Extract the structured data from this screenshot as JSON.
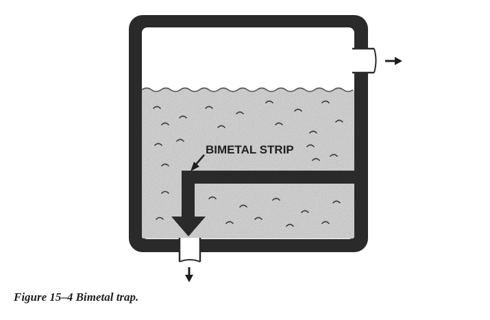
{
  "diagram": {
    "labels": {
      "bimetal_strip": "BIMETAL STRIP"
    },
    "colors": {
      "wall": "#2a2a2a",
      "water": "#cfcfcf",
      "water_speckle": "#8a8a8a",
      "steam_space": "#ffffff",
      "ink": "#1e1e1e"
    }
  },
  "caption": {
    "text": "Figure 15–4  Bimetal trap."
  }
}
